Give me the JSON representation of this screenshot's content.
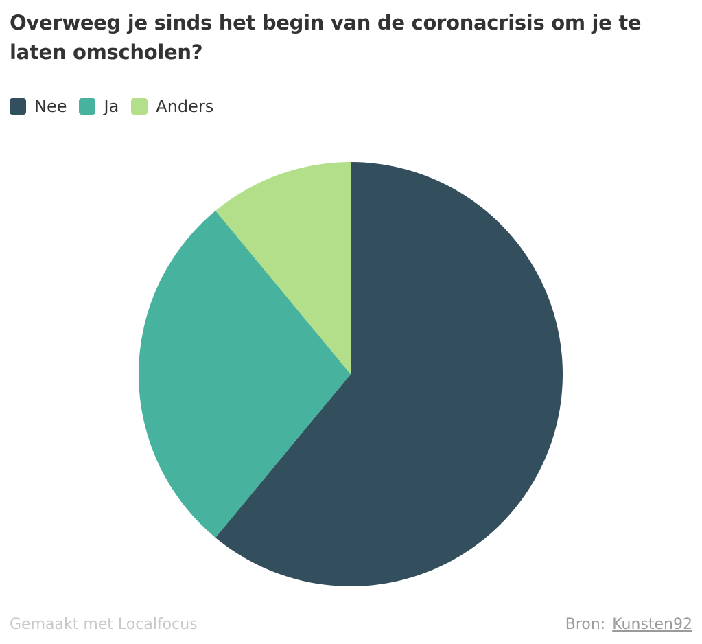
{
  "chart_data": {
    "type": "pie",
    "title": "Overweeg je sinds het begin van de coronacrisis om je te laten omscholen?",
    "categories": [
      "Nee",
      "Ja",
      "Anders"
    ],
    "values": [
      61,
      28,
      11
    ],
    "colors": [
      "#334f5e",
      "#47b29d",
      "#b3df8a"
    ],
    "legend_position": "top-left"
  },
  "footer": {
    "made_with": "Gemaakt met Localfocus",
    "source_label": "Bron:",
    "source_link": "Kunsten92"
  }
}
